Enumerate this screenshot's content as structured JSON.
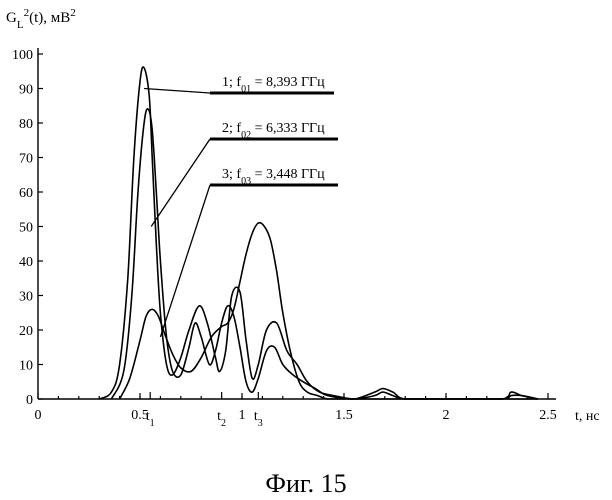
{
  "chart_data": {
    "type": "line",
    "ylabel_main": "G",
    "ylabel_sub": "L",
    "ylabel_sup": "2",
    "ylabel_rest": "(t), мВ",
    "ylabel_unit_sup": "2",
    "xlabel": "t, нс",
    "xlim": [
      0,
      2.5
    ],
    "ylim": [
      0,
      100
    ],
    "y_ticks": [
      0,
      10,
      20,
      30,
      40,
      50,
      60,
      70,
      80,
      90,
      100
    ],
    "x_ticks": [
      {
        "value": 0,
        "label": "0"
      },
      {
        "value": 0.5,
        "label": "0.5"
      },
      {
        "value": 1,
        "label": "1"
      },
      {
        "value": 1.5,
        "label": "1.5"
      },
      {
        "value": 2,
        "label": "2"
      },
      {
        "value": 2.5,
        "label": "2.5"
      }
    ],
    "time_markers": [
      {
        "value": 0.55,
        "main": "t",
        "sub": "1"
      },
      {
        "value": 0.9,
        "main": "t",
        "sub": "2"
      },
      {
        "value": 1.08,
        "main": "t",
        "sub": "3"
      }
    ],
    "series": [
      {
        "name": "1; f01 = 8,393 ГГц",
        "legend_prefix": "1; f",
        "legend_sub": "01",
        "legend_suffix": " = 8,393 ГГц",
        "x": [
          0.3,
          0.36,
          0.4,
          0.44,
          0.47,
          0.5,
          0.52,
          0.545,
          0.56,
          0.58,
          0.6,
          0.63,
          0.66,
          0.7,
          0.74,
          0.79,
          0.83,
          0.87,
          0.89,
          0.92,
          0.95,
          0.99,
          1.02,
          1.05,
          1.08,
          1.12,
          1.17,
          1.22,
          1.27,
          1.32,
          1.38,
          1.45,
          1.55,
          1.65,
          1.69,
          1.74,
          1.8,
          2.0,
          2.27,
          2.32,
          2.37,
          2.45
        ],
        "y": [
          0,
          2,
          10,
          35,
          70,
          92,
          96,
          88,
          70,
          45,
          25,
          10,
          7,
          12,
          20,
          27,
          22,
          12,
          8,
          14,
          30,
          31,
          17,
          6,
          10,
          20,
          22,
          14,
          10,
          5,
          2,
          1,
          0,
          2,
          3,
          2,
          0,
          0,
          0,
          2,
          1,
          0
        ]
      },
      {
        "name": "2; f02 = 6,333 ГГц",
        "legend_prefix": "2; f",
        "legend_sub": "02",
        "legend_suffix": " = 6,333 ГГц",
        "x": [
          0.36,
          0.42,
          0.46,
          0.49,
          0.52,
          0.54,
          0.56,
          0.58,
          0.6,
          0.63,
          0.66,
          0.7,
          0.74,
          0.77,
          0.8,
          0.84,
          0.87,
          0.9,
          0.93,
          0.96,
          0.99,
          1.02,
          1.05,
          1.08,
          1.12,
          1.16,
          1.2,
          1.25,
          1.3,
          1.36,
          1.42,
          1.55,
          1.65,
          1.69,
          1.74,
          1.8,
          2.0,
          2.27,
          2.32,
          2.37,
          2.45
        ],
        "y": [
          0,
          8,
          30,
          60,
          80,
          84,
          78,
          60,
          40,
          18,
          8,
          7,
          15,
          22,
          18,
          10,
          14,
          22,
          27,
          24,
          15,
          5,
          2,
          6,
          14,
          15,
          10,
          7,
          5,
          3,
          1,
          0,
          1,
          2,
          1,
          0,
          0,
          0,
          1,
          1,
          0
        ]
      },
      {
        "name": "3; f03 = 3,448 ГГц",
        "legend_prefix": "3; f",
        "legend_sub": "03",
        "legend_suffix": " = 3,448 ГГц",
        "x": [
          0.4,
          0.45,
          0.5,
          0.53,
          0.56,
          0.59,
          0.62,
          0.66,
          0.7,
          0.75,
          0.8,
          0.85,
          0.9,
          0.93,
          0.96,
          0.99,
          1.02,
          1.05,
          1.08,
          1.11,
          1.14,
          1.17,
          1.2,
          1.24,
          1.28,
          1.32,
          1.37,
          1.42,
          1.5,
          1.6,
          1.7,
          2.0,
          2.45
        ],
        "y": [
          0,
          6,
          17,
          24,
          26,
          24,
          19,
          13,
          9,
          8,
          12,
          18,
          21,
          22,
          26,
          34,
          42,
          48,
          51,
          50,
          46,
          37,
          25,
          13,
          5,
          2,
          1,
          0,
          0,
          0,
          0,
          0,
          0
        ]
      }
    ]
  },
  "caption": "Фиг. 15"
}
